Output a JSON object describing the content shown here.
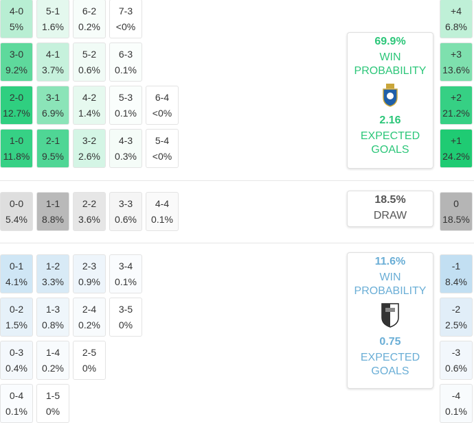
{
  "home": {
    "rows": [
      [
        {
          "score": "4-0",
          "prob": "5%",
          "color": "#b8eed3"
        },
        {
          "score": "5-1",
          "prob": "1.6%",
          "color": "#e4f8ee"
        },
        {
          "score": "6-2",
          "prob": "0.2%",
          "color": "#f7fdfa"
        },
        {
          "score": "7-3",
          "prob": "<0%",
          "color": "#ffffff"
        }
      ],
      [
        {
          "score": "3-0",
          "prob": "9.2%",
          "color": "#5ed99c"
        },
        {
          "score": "4-1",
          "prob": "3.7%",
          "color": "#c6f1dc"
        },
        {
          "score": "5-2",
          "prob": "0.6%",
          "color": "#f1fbf6"
        },
        {
          "score": "6-3",
          "prob": "0.1%",
          "color": "#fafefc"
        }
      ],
      [
        {
          "score": "2-0",
          "prob": "12.7%",
          "color": "#2fcf80"
        },
        {
          "score": "3-1",
          "prob": "6.9%",
          "color": "#8be4b8"
        },
        {
          "score": "4-2",
          "prob": "1.4%",
          "color": "#e6f9ef"
        },
        {
          "score": "5-3",
          "prob": "0.1%",
          "color": "#fafefc"
        },
        {
          "score": "6-4",
          "prob": "<0%",
          "color": "#ffffff"
        }
      ],
      [
        {
          "score": "1-0",
          "prob": "11.8%",
          "color": "#36d185"
        },
        {
          "score": "2-1",
          "prob": "9.5%",
          "color": "#4fd695"
        },
        {
          "score": "3-2",
          "prob": "2.6%",
          "color": "#d4f5e5"
        },
        {
          "score": "4-3",
          "prob": "0.3%",
          "color": "#f5fcf8"
        },
        {
          "score": "5-4",
          "prob": "<0%",
          "color": "#ffffff"
        }
      ]
    ],
    "margins": [
      {
        "label": "+4",
        "prob": "6.8%",
        "color": "#bff0d7"
      },
      {
        "label": "+3",
        "prob": "13.6%",
        "color": "#7ee0ae"
      },
      {
        "label": "+2",
        "prob": "21.2%",
        "color": "#36d084"
      },
      {
        "label": "+1",
        "prob": "24.2%",
        "color": "#1fcb73"
      }
    ],
    "win_probability": "69.9%",
    "win_label": "WIN PROBABILITY",
    "expected_goals": "2.16",
    "xg_label": "EXPECTED GOALS",
    "accent": "#2cc679"
  },
  "draw": {
    "row": [
      {
        "score": "0-0",
        "prob": "5.4%",
        "color": "#dedede"
      },
      {
        "score": "1-1",
        "prob": "8.8%",
        "color": "#b9b9b9"
      },
      {
        "score": "2-2",
        "prob": "3.6%",
        "color": "#e6e6e6"
      },
      {
        "score": "3-3",
        "prob": "0.6%",
        "color": "#f5f5f5"
      },
      {
        "score": "4-4",
        "prob": "0.1%",
        "color": "#fafafa"
      }
    ],
    "margin": {
      "label": "0",
      "prob": "18.5%",
      "color": "#b5b5b5"
    },
    "probability": "18.5%",
    "label": "DRAW"
  },
  "away": {
    "rows": [
      [
        {
          "score": "0-1",
          "prob": "4.1%",
          "color": "#cfe6f5"
        },
        {
          "score": "1-2",
          "prob": "3.3%",
          "color": "#d8eaf6"
        },
        {
          "score": "2-3",
          "prob": "0.9%",
          "color": "#eef5fb"
        },
        {
          "score": "3-4",
          "prob": "0.1%",
          "color": "#fafcfe"
        }
      ],
      [
        {
          "score": "0-2",
          "prob": "1.5%",
          "color": "#e6f1f9"
        },
        {
          "score": "1-3",
          "prob": "0.8%",
          "color": "#eff6fb"
        },
        {
          "score": "2-4",
          "prob": "0.2%",
          "color": "#f8fbfd"
        },
        {
          "score": "3-5",
          "prob": "0%",
          "color": "#ffffff"
        }
      ],
      [
        {
          "score": "0-3",
          "prob": "0.4%",
          "color": "#f4f8fc"
        },
        {
          "score": "1-4",
          "prob": "0.2%",
          "color": "#f8fbfd"
        },
        {
          "score": "2-5",
          "prob": "0%",
          "color": "#ffffff"
        }
      ],
      [
        {
          "score": "0-4",
          "prob": "0.1%",
          "color": "#fafcfe"
        },
        {
          "score": "1-5",
          "prob": "0%",
          "color": "#ffffff"
        }
      ]
    ],
    "margins": [
      {
        "label": "-1",
        "prob": "8.4%",
        "color": "#c2dff2"
      },
      {
        "label": "-2",
        "prob": "2.5%",
        "color": "#e1eef8"
      },
      {
        "label": "-3",
        "prob": "0.6%",
        "color": "#f2f7fc"
      },
      {
        "label": "-4",
        "prob": "0.1%",
        "color": "#f8fbfd"
      }
    ],
    "win_probability": "11.6%",
    "win_label": "WIN PROBABILITY",
    "expected_goals": "0.75",
    "xg_label": "EXPECTED GOALS",
    "accent": "#6aaed6"
  }
}
